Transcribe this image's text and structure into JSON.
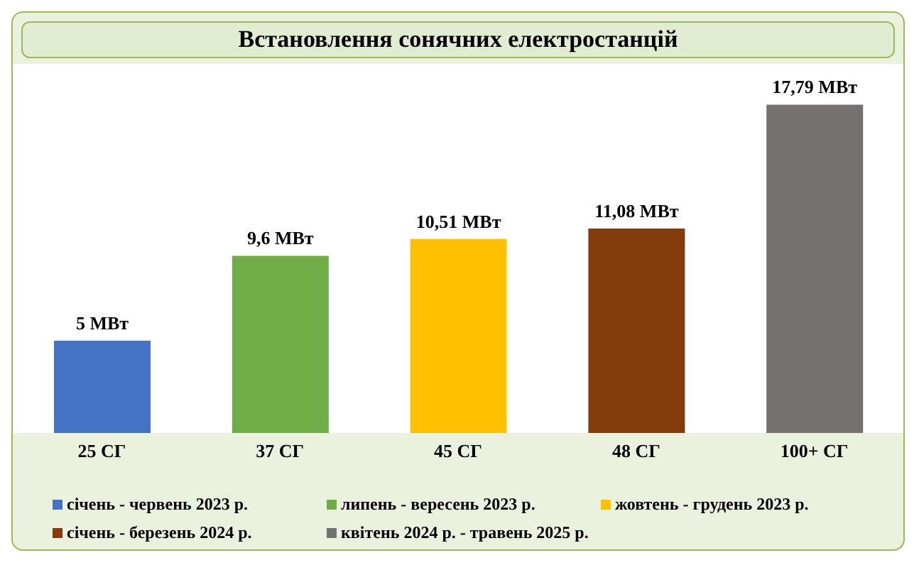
{
  "chart_data": {
    "type": "bar",
    "title": "Встановлення сонячних електростанцій",
    "categories": [
      "25 СГ",
      "37 СГ",
      "45 СГ",
      "48 СГ",
      "100+ СГ"
    ],
    "series": [
      {
        "name": "січень - червень 2023 р.",
        "color": "#4472c4",
        "values": [
          5,
          null,
          null,
          null,
          null
        ],
        "value_labels": [
          "5 МВт",
          null,
          null,
          null,
          null
        ]
      },
      {
        "name": "липень - вересень 2023 р.",
        "color": "#70ad47",
        "values": [
          null,
          9.6,
          null,
          null,
          null
        ],
        "value_labels": [
          null,
          "9,6 МВт",
          null,
          null,
          null
        ]
      },
      {
        "name": "жовтень - грудень 2023 р.",
        "color": "#ffc000",
        "values": [
          null,
          null,
          10.51,
          null,
          null
        ],
        "value_labels": [
          null,
          null,
          "10,51 МВт",
          null,
          null
        ]
      },
      {
        "name": "січень - березень 2024 р.",
        "color": "#843c0c",
        "values": [
          null,
          null,
          null,
          11.08,
          null
        ],
        "value_labels": [
          null,
          null,
          null,
          "11,08 МВт",
          null
        ]
      },
      {
        "name": "квітень 2024 р. - травень 2025 р.",
        "color": "#767171",
        "values": [
          null,
          null,
          null,
          null,
          17.79
        ],
        "value_labels": [
          null,
          null,
          null,
          null,
          "17,79 МВт"
        ]
      }
    ],
    "stacked": true,
    "tick_labels": "x",
    "legend": "bottom"
  }
}
